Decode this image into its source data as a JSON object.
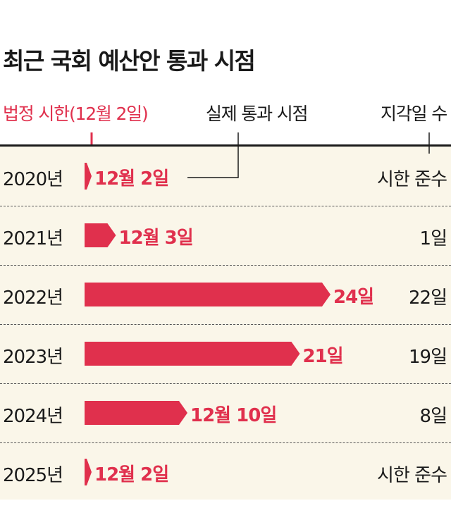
{
  "chart_data": {
    "type": "bar",
    "title": "최근 국회 예산안 통과 시점",
    "legend": {
      "limit_label": "법정 시한(12월 2일)",
      "actual_label": "실제 통과 시점",
      "delay_label": "지각일 수"
    },
    "colors": {
      "bar": "#e0304d",
      "panel": "#faf6e9"
    },
    "categories": [
      "2020년",
      "2021년",
      "2022년",
      "2023년",
      "2024년",
      "2025년"
    ],
    "series": [
      {
        "values": [
          0,
          1,
          22,
          19,
          8,
          0
        ]
      }
    ],
    "date_labels": [
      "12월 2일",
      "12월 3일",
      "24일",
      "21일",
      "12월 10일",
      "12월 2일"
    ],
    "delay_labels": [
      "시한 준수",
      "1일",
      "22일",
      "19일",
      "8일",
      "시한 준수"
    ],
    "ylim": [
      0,
      22
    ]
  }
}
